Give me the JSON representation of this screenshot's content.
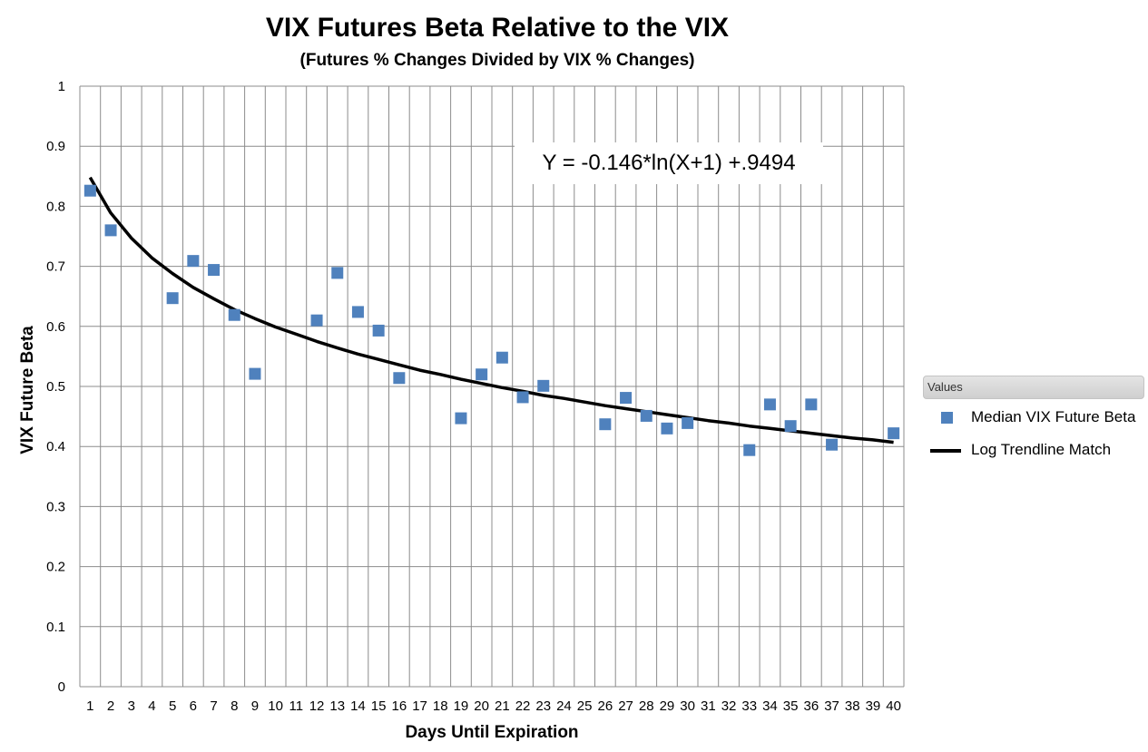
{
  "chart_data": {
    "type": "scatter",
    "title": "VIX Futures Beta Relative to the VIX",
    "subtitle": "(Futures % Changes Divided by VIX % Changes)",
    "xlabel": "Days Until Expiration",
    "ylabel": "VIX Future Beta",
    "categories": [
      "1",
      "2",
      "3",
      "4",
      "5",
      "6",
      "7",
      "8",
      "9",
      "10",
      "11",
      "12",
      "13",
      "14",
      "15",
      "16",
      "17",
      "18",
      "19",
      "20",
      "21",
      "22",
      "23",
      "24",
      "25",
      "26",
      "27",
      "28",
      "29",
      "30",
      "31",
      "32",
      "33",
      "34",
      "35",
      "36",
      "37",
      "38",
      "39",
      "40"
    ],
    "ylim": [
      0,
      1
    ],
    "y_ticks": [
      "0",
      "0.1",
      "0.2",
      "0.3",
      "0.4",
      "0.5",
      "0.6",
      "0.7",
      "0.8",
      "0.9",
      "1"
    ],
    "grid": true,
    "legend_title": "Values",
    "legend_position": "right",
    "annotation": "Y = -0.146*ln(X+1) +.9494",
    "series": [
      {
        "name": "Median VIX Future Beta",
        "type": "scatter",
        "color": "#4f81bd",
        "points": [
          {
            "x": 1,
            "y": 0.826
          },
          {
            "x": 2,
            "y": 0.76
          },
          {
            "x": 5,
            "y": 0.647
          },
          {
            "x": 6,
            "y": 0.709
          },
          {
            "x": 7,
            "y": 0.694
          },
          {
            "x": 8,
            "y": 0.619
          },
          {
            "x": 9,
            "y": 0.521
          },
          {
            "x": 12,
            "y": 0.61
          },
          {
            "x": 13,
            "y": 0.689
          },
          {
            "x": 14,
            "y": 0.624
          },
          {
            "x": 15,
            "y": 0.593
          },
          {
            "x": 16,
            "y": 0.514
          },
          {
            "x": 19,
            "y": 0.447
          },
          {
            "x": 20,
            "y": 0.52
          },
          {
            "x": 21,
            "y": 0.548
          },
          {
            "x": 22,
            "y": 0.482
          },
          {
            "x": 23,
            "y": 0.501
          },
          {
            "x": 26,
            "y": 0.437
          },
          {
            "x": 27,
            "y": 0.481
          },
          {
            "x": 28,
            "y": 0.451
          },
          {
            "x": 29,
            "y": 0.43
          },
          {
            "x": 30,
            "y": 0.439
          },
          {
            "x": 33,
            "y": 0.394
          },
          {
            "x": 34,
            "y": 0.47
          },
          {
            "x": 35,
            "y": 0.434
          },
          {
            "x": 36,
            "y": 0.47
          },
          {
            "x": 37,
            "y": 0.403
          },
          {
            "x": 40,
            "y": 0.422
          }
        ]
      },
      {
        "name": "Log Trendline Match",
        "type": "line",
        "color": "#000000",
        "x": [
          1,
          2,
          3,
          4,
          5,
          6,
          7,
          8,
          9,
          10,
          11,
          12,
          13,
          14,
          15,
          16,
          17,
          18,
          19,
          20,
          21,
          22,
          23,
          24,
          25,
          26,
          27,
          28,
          29,
          30,
          31,
          32,
          33,
          34,
          35,
          36,
          37,
          38,
          39,
          40
        ],
        "y": [
          0.848,
          0.789,
          0.747,
          0.714,
          0.688,
          0.665,
          0.646,
          0.628,
          0.613,
          0.599,
          0.587,
          0.575,
          0.564,
          0.554,
          0.545,
          0.536,
          0.527,
          0.52,
          0.512,
          0.505,
          0.498,
          0.492,
          0.485,
          0.48,
          0.474,
          0.468,
          0.463,
          0.458,
          0.453,
          0.448,
          0.443,
          0.439,
          0.434,
          0.43,
          0.426,
          0.422,
          0.418,
          0.414,
          0.411,
          0.407
        ]
      }
    ]
  }
}
